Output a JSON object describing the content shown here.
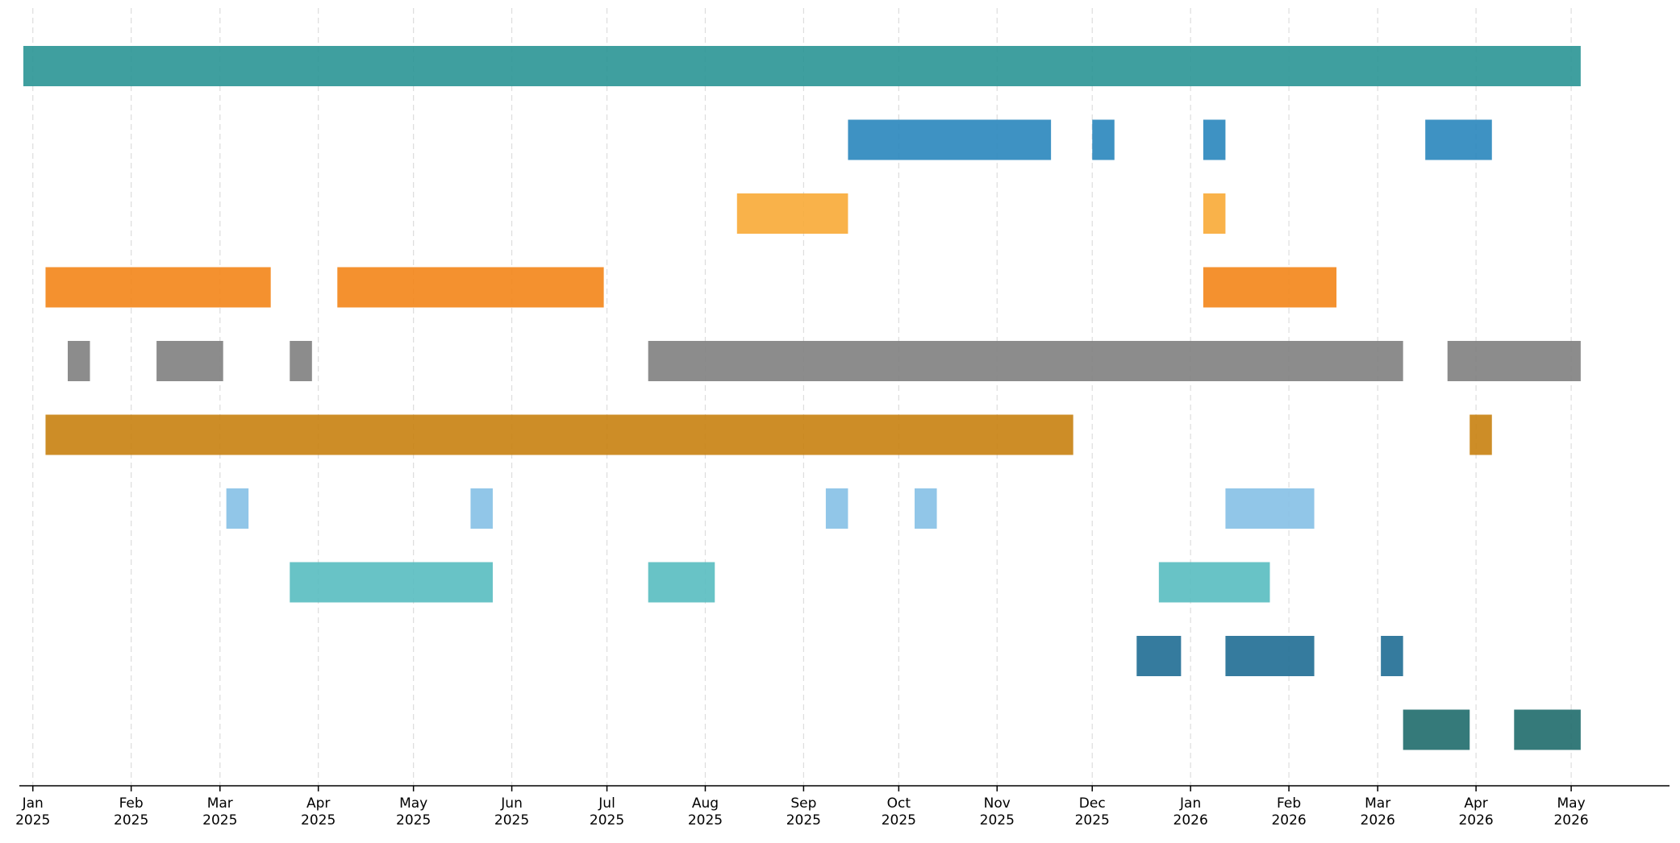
{
  "chart_data": {
    "type": "timeline",
    "title": "",
    "xlabel": "",
    "ylabel": "",
    "x_axis": {
      "kind": "date",
      "range": [
        "2024-12-28",
        "2026-06-01"
      ],
      "ticks": [
        {
          "date": "2025-01-01",
          "month": "Jan",
          "year": "2025"
        },
        {
          "date": "2025-02-01",
          "month": "Feb",
          "year": "2025"
        },
        {
          "date": "2025-03-01",
          "month": "Mar",
          "year": "2025"
        },
        {
          "date": "2025-04-01",
          "month": "Apr",
          "year": "2025"
        },
        {
          "date": "2025-05-01",
          "month": "May",
          "year": "2025"
        },
        {
          "date": "2025-06-01",
          "month": "Jun",
          "year": "2025"
        },
        {
          "date": "2025-07-01",
          "month": "Jul",
          "year": "2025"
        },
        {
          "date": "2025-08-01",
          "month": "Aug",
          "year": "2025"
        },
        {
          "date": "2025-09-01",
          "month": "Sep",
          "year": "2025"
        },
        {
          "date": "2025-10-01",
          "month": "Oct",
          "year": "2025"
        },
        {
          "date": "2025-11-01",
          "month": "Nov",
          "year": "2025"
        },
        {
          "date": "2025-12-01",
          "month": "Dec",
          "year": "2025"
        },
        {
          "date": "2026-01-01",
          "month": "Jan",
          "year": "2026"
        },
        {
          "date": "2026-02-01",
          "month": "Feb",
          "year": "2026"
        },
        {
          "date": "2026-03-01",
          "month": "Mar",
          "year": "2026"
        },
        {
          "date": "2026-04-01",
          "month": "Apr",
          "year": "2026"
        },
        {
          "date": "2026-05-01",
          "month": "May",
          "year": "2026"
        }
      ]
    },
    "grid": {
      "vertical": true,
      "style": "dashed",
      "color": "#dddddd"
    },
    "y_axis_visible": false,
    "rows": [
      {
        "color": "#2a9595",
        "spans": [
          [
            "2024-12-29",
            "2026-05-04"
          ]
        ]
      },
      {
        "color": "#2986bd",
        "spans": [
          [
            "2025-09-15",
            "2025-11-18"
          ],
          [
            "2025-12-01",
            "2025-12-08"
          ],
          [
            "2026-01-05",
            "2026-01-12"
          ],
          [
            "2026-03-16",
            "2026-04-06"
          ]
        ]
      },
      {
        "color": "#f8aa36",
        "spans": [
          [
            "2025-08-11",
            "2025-09-15"
          ],
          [
            "2026-01-05",
            "2026-01-12"
          ]
        ]
      },
      {
        "color": "#f38518",
        "spans": [
          [
            "2025-01-05",
            "2025-03-17"
          ],
          [
            "2025-04-07",
            "2025-06-30"
          ],
          [
            "2026-01-05",
            "2026-02-16"
          ]
        ]
      },
      {
        "color": "#808080",
        "spans": [
          [
            "2025-01-12",
            "2025-01-19"
          ],
          [
            "2025-02-09",
            "2025-03-02"
          ],
          [
            "2025-03-23",
            "2025-03-30"
          ],
          [
            "2025-07-14",
            "2026-03-09"
          ],
          [
            "2026-03-23",
            "2026-05-04"
          ]
        ]
      },
      {
        "color": "#c8810f",
        "spans": [
          [
            "2025-01-05",
            "2025-11-25"
          ],
          [
            "2026-03-30",
            "2026-04-06"
          ]
        ]
      },
      {
        "color": "#85c0e6",
        "spans": [
          [
            "2025-03-03",
            "2025-03-10"
          ],
          [
            "2025-05-19",
            "2025-05-26"
          ],
          [
            "2025-09-08",
            "2025-09-15"
          ],
          [
            "2025-10-06",
            "2025-10-13"
          ],
          [
            "2026-01-12",
            "2026-02-09"
          ]
        ]
      },
      {
        "color": "#58bcc0",
        "spans": [
          [
            "2025-03-23",
            "2025-05-26"
          ],
          [
            "2025-07-14",
            "2025-08-04"
          ],
          [
            "2025-12-22",
            "2026-01-26"
          ]
        ]
      },
      {
        "color": "#1f6d93",
        "spans": [
          [
            "2025-12-15",
            "2025-12-29"
          ],
          [
            "2026-01-12",
            "2026-02-09"
          ],
          [
            "2026-03-02",
            "2026-03-09"
          ]
        ]
      },
      {
        "color": "#1f6b6b",
        "spans": [
          [
            "2026-03-09",
            "2026-03-30"
          ],
          [
            "2026-04-13",
            "2026-05-04"
          ]
        ]
      }
    ]
  }
}
